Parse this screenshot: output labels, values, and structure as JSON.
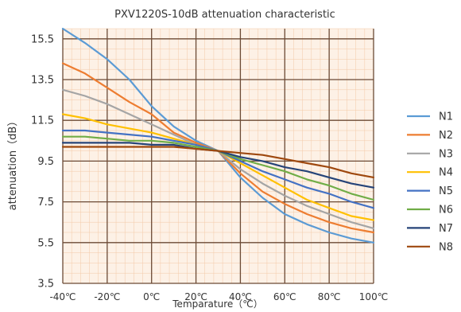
{
  "chart_data": {
    "type": "line",
    "title": "PXV1220S-10dB attenuation characteristic",
    "xlabel": "Temparature（℃）",
    "ylabel": "attenuation（dB）",
    "x": [
      -40,
      -30,
      -20,
      -10,
      0,
      10,
      20,
      30,
      40,
      50,
      60,
      70,
      80,
      90,
      100
    ],
    "x_tick_values": [
      -40,
      -20,
      0,
      20,
      40,
      60,
      80,
      100
    ],
    "x_tick_labels": [
      "-40℃",
      "-20℃",
      "0℃",
      "20℃",
      "40℃",
      "60℃",
      "80℃",
      "100℃"
    ],
    "xlim": [
      -40,
      100
    ],
    "y_tick_values": [
      3.5,
      5.5,
      7.5,
      9.5,
      11.5,
      13.5,
      15.5
    ],
    "y_tick_labels": [
      "3.5",
      "5.5",
      "7.5",
      "9.5",
      "11.5",
      "13.5",
      "15.5"
    ],
    "ylim": [
      3.5,
      16
    ],
    "grid": true,
    "legend_position": "right",
    "series": [
      {
        "name": "N1",
        "color": "#5b9bd5",
        "values": [
          16.0,
          15.3,
          14.5,
          13.5,
          12.2,
          11.2,
          10.5,
          10.0,
          8.7,
          7.7,
          6.9,
          6.4,
          6.0,
          5.7,
          5.5
        ]
      },
      {
        "name": "N2",
        "color": "#ed7d31",
        "values": [
          14.3,
          13.8,
          13.1,
          12.4,
          11.8,
          10.9,
          10.4,
          10.0,
          8.9,
          8.0,
          7.4,
          6.9,
          6.5,
          6.2,
          6.0
        ]
      },
      {
        "name": "N3",
        "color": "#a5a5a5",
        "values": [
          13.0,
          12.7,
          12.3,
          11.8,
          11.3,
          10.8,
          10.3,
          10.0,
          9.1,
          8.4,
          7.8,
          7.3,
          6.9,
          6.5,
          6.2
        ]
      },
      {
        "name": "N4",
        "color": "#ffc000",
        "values": [
          11.8,
          11.6,
          11.3,
          11.1,
          10.9,
          10.6,
          10.3,
          10.0,
          9.4,
          8.8,
          8.2,
          7.6,
          7.2,
          6.8,
          6.6
        ]
      },
      {
        "name": "N5",
        "color": "#4472c4",
        "values": [
          11.0,
          11.0,
          10.9,
          10.8,
          10.7,
          10.5,
          10.3,
          10.0,
          9.5,
          9.0,
          8.6,
          8.2,
          7.9,
          7.5,
          7.2
        ]
      },
      {
        "name": "N6",
        "color": "#70ad47",
        "values": [
          10.7,
          10.7,
          10.6,
          10.5,
          10.5,
          10.4,
          10.2,
          10.0,
          9.6,
          9.3,
          9.0,
          8.6,
          8.3,
          7.9,
          7.6
        ]
      },
      {
        "name": "N7",
        "color": "#264478",
        "values": [
          10.4,
          10.4,
          10.4,
          10.4,
          10.3,
          10.3,
          10.1,
          10.0,
          9.7,
          9.5,
          9.2,
          9.0,
          8.7,
          8.4,
          8.2
        ]
      },
      {
        "name": "N8",
        "color": "#9e480e",
        "values": [
          10.2,
          10.2,
          10.2,
          10.2,
          10.2,
          10.2,
          10.1,
          10.0,
          9.9,
          9.8,
          9.6,
          9.4,
          9.2,
          8.9,
          8.7
        ]
      }
    ]
  }
}
